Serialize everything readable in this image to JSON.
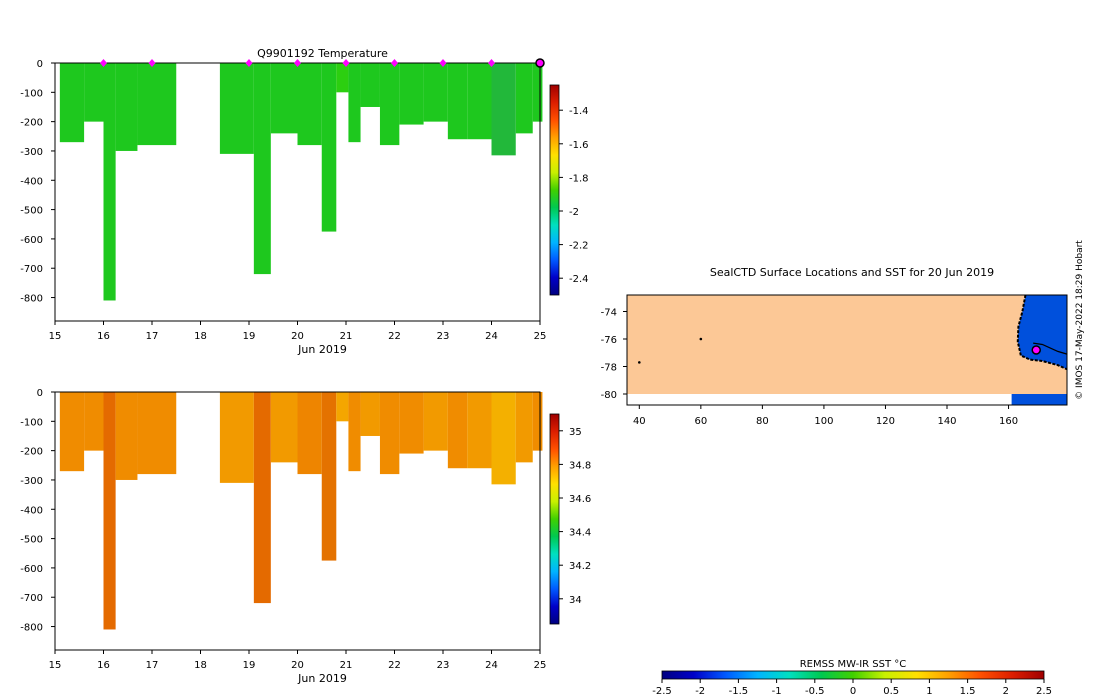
{
  "chart_data": [
    {
      "type": "heatmap",
      "title": "Q9901192  Temperature",
      "xlabel": "Jun 2019",
      "ylabel": "",
      "xlim": [
        15,
        25
      ],
      "ylim": [
        -880,
        0
      ],
      "xticks": [
        "15",
        "16",
        "17",
        "18",
        "19",
        "20",
        "21",
        "22",
        "23",
        "24",
        "25"
      ],
      "yticks": [
        "0",
        "-100",
        "-200",
        "-300",
        "-400",
        "-500",
        "-600",
        "-700",
        "-800"
      ],
      "colorbar": {
        "range": [
          -2.5,
          -1.25
        ],
        "ticks": [
          "-1.4",
          "-1.6",
          "-1.8",
          "-2",
          "-2.2",
          "-2.4"
        ],
        "ramp": [
          "#000080",
          "#0000c8",
          "#005aff",
          "#00b4ff",
          "#00e0c0",
          "#00c850",
          "#40d000",
          "#c8f000",
          "#ffe000",
          "#ffa000",
          "#ff5000",
          "#dc1e00",
          "#a00000"
        ]
      },
      "markers": [
        {
          "day": 16,
          "color": "#ff00ff"
        },
        {
          "day": 17,
          "color": "#ff00ff"
        },
        {
          "day": 19,
          "color": "#ff00ff"
        },
        {
          "day": 20,
          "color": "#ff00ff"
        },
        {
          "day": 21,
          "color": "#ff00ff"
        },
        {
          "day": 22,
          "color": "#ff00ff"
        },
        {
          "day": 23,
          "color": "#ff00ff"
        },
        {
          "day": 24,
          "color": "#ff00ff"
        },
        {
          "day": 25,
          "color": "#ff00ff",
          "current": true
        }
      ],
      "profiles": [
        {
          "x0": 15.1,
          "x1": 15.6,
          "depth": 270,
          "color": "#1ec81e"
        },
        {
          "x0": 15.6,
          "x1": 16.0,
          "depth": 200,
          "color": "#1ec81e"
        },
        {
          "x0": 16.0,
          "x1": 16.25,
          "depth": 810,
          "color": "#1ec81e"
        },
        {
          "x0": 16.25,
          "x1": 16.7,
          "depth": 300,
          "color": "#1ec81e"
        },
        {
          "x0": 16.7,
          "x1": 17.5,
          "depth": 280,
          "color": "#1ec81e"
        },
        {
          "x0": 18.4,
          "x1": 19.1,
          "depth": 310,
          "color": "#1ec81e"
        },
        {
          "x0": 19.1,
          "x1": 19.45,
          "depth": 720,
          "color": "#1ec81e"
        },
        {
          "x0": 19.45,
          "x1": 20.0,
          "depth": 240,
          "color": "#1ec81e"
        },
        {
          "x0": 20.0,
          "x1": 20.5,
          "depth": 280,
          "color": "#1ec81e"
        },
        {
          "x0": 20.5,
          "x1": 20.8,
          "depth": 575,
          "color": "#1ec81e"
        },
        {
          "x0": 20.8,
          "x1": 21.05,
          "depth": 100,
          "color": "#2ccf10"
        },
        {
          "x0": 21.05,
          "x1": 21.3,
          "depth": 270,
          "color": "#1ec81e"
        },
        {
          "x0": 21.3,
          "x1": 21.7,
          "depth": 150,
          "color": "#1ec81e"
        },
        {
          "x0": 21.7,
          "x1": 22.1,
          "depth": 280,
          "color": "#1ec81e"
        },
        {
          "x0": 22.1,
          "x1": 22.6,
          "depth": 210,
          "color": "#1ec81e"
        },
        {
          "x0": 22.6,
          "x1": 23.1,
          "depth": 200,
          "color": "#1ec81e"
        },
        {
          "x0": 23.1,
          "x1": 23.5,
          "depth": 260,
          "color": "#1ec81e"
        },
        {
          "x0": 23.5,
          "x1": 24.0,
          "depth": 260,
          "color": "#1ec81e"
        },
        {
          "x0": 24.0,
          "x1": 24.5,
          "depth": 315,
          "color": "#22b83a"
        },
        {
          "x0": 24.5,
          "x1": 24.85,
          "depth": 240,
          "color": "#1ec81e"
        },
        {
          "x0": 24.85,
          "x1": 25.05,
          "depth": 200,
          "color": "#1ec81e"
        }
      ]
    },
    {
      "type": "heatmap",
      "title": "",
      "xlabel": "Jun 2019",
      "ylabel": "",
      "xlim": [
        15,
        25
      ],
      "ylim": [
        -880,
        0
      ],
      "xticks": [
        "15",
        "16",
        "17",
        "18",
        "19",
        "20",
        "21",
        "22",
        "23",
        "24",
        "25"
      ],
      "yticks": [
        "0",
        "-100",
        "-200",
        "-300",
        "-400",
        "-500",
        "-600",
        "-700",
        "-800"
      ],
      "colorbar": {
        "range": [
          33.85,
          35.1
        ],
        "ticks": [
          "35",
          "34.8",
          "34.6",
          "34.4",
          "34.2",
          "34"
        ],
        "ramp": [
          "#000080",
          "#0000c8",
          "#005aff",
          "#00b4ff",
          "#00e0c0",
          "#00c850",
          "#40d000",
          "#c8f000",
          "#ffe000",
          "#ffa000",
          "#ff5000",
          "#dc1e00",
          "#a00000"
        ]
      },
      "profiles": [
        {
          "x0": 15.1,
          "x1": 15.6,
          "depth": 270,
          "color": "#f08c00"
        },
        {
          "x0": 15.6,
          "x1": 16.0,
          "depth": 200,
          "color": "#f08c00"
        },
        {
          "x0": 16.0,
          "x1": 16.25,
          "depth": 810,
          "color": "#e46a00"
        },
        {
          "x0": 16.25,
          "x1": 16.7,
          "depth": 300,
          "color": "#f08c00"
        },
        {
          "x0": 16.7,
          "x1": 17.5,
          "depth": 280,
          "color": "#f08c00"
        },
        {
          "x0": 18.4,
          "x1": 19.1,
          "depth": 310,
          "color": "#f29a00"
        },
        {
          "x0": 19.1,
          "x1": 19.45,
          "depth": 720,
          "color": "#e46a00"
        },
        {
          "x0": 19.45,
          "x1": 20.0,
          "depth": 240,
          "color": "#f29a00"
        },
        {
          "x0": 20.0,
          "x1": 20.5,
          "depth": 280,
          "color": "#ee8500"
        },
        {
          "x0": 20.5,
          "x1": 20.8,
          "depth": 575,
          "color": "#e47200"
        },
        {
          "x0": 20.8,
          "x1": 21.05,
          "depth": 100,
          "color": "#f4a600"
        },
        {
          "x0": 21.05,
          "x1": 21.3,
          "depth": 270,
          "color": "#f08c00"
        },
        {
          "x0": 21.3,
          "x1": 21.7,
          "depth": 150,
          "color": "#f29a00"
        },
        {
          "x0": 21.7,
          "x1": 22.1,
          "depth": 280,
          "color": "#f08c00"
        },
        {
          "x0": 22.1,
          "x1": 22.6,
          "depth": 210,
          "color": "#f08c00"
        },
        {
          "x0": 22.6,
          "x1": 23.1,
          "depth": 200,
          "color": "#f29a00"
        },
        {
          "x0": 23.1,
          "x1": 23.5,
          "depth": 260,
          "color": "#f08c00"
        },
        {
          "x0": 23.5,
          "x1": 24.0,
          "depth": 260,
          "color": "#f29a00"
        },
        {
          "x0": 24.0,
          "x1": 24.5,
          "depth": 315,
          "color": "#f4b000"
        },
        {
          "x0": 24.5,
          "x1": 24.85,
          "depth": 240,
          "color": "#f29a00"
        },
        {
          "x0": 24.85,
          "x1": 25.05,
          "depth": 200,
          "color": "#f08c00"
        }
      ]
    },
    {
      "type": "map",
      "title": "SealCTD Surface Locations and SST for 20 Jun 2019",
      "xlim": [
        36,
        179
      ],
      "ylim": [
        -80.8,
        -72.8
      ],
      "xticks": [
        "40",
        "60",
        "80",
        "100",
        "120",
        "140",
        "160"
      ],
      "yticks": [
        "-74",
        "-76",
        "-78",
        "-80"
      ],
      "land_color": "#fcc896",
      "ocean_color": "#0050dc",
      "points": [
        {
          "lon": 60,
          "lat": -76.0,
          "kind": "surface"
        },
        {
          "lon": 40,
          "lat": -77.7,
          "kind": "surface"
        },
        {
          "lon": 169,
          "lat": -76.8,
          "kind": "current"
        }
      ]
    }
  ],
  "sst_colorbar": {
    "label": "REMSS MW-IR SST °C",
    "ticks": [
      "-2.5",
      "-2",
      "-1.5",
      "-1",
      "-0.5",
      "0",
      "0.5",
      "1",
      "1.5",
      "2",
      "2.5"
    ],
    "ramp": [
      "#000080",
      "#0000c8",
      "#005aff",
      "#00b4ff",
      "#00e0c0",
      "#00c850",
      "#40d000",
      "#c8f000",
      "#ffe000",
      "#ffa000",
      "#ff5000",
      "#dc1e00",
      "#a00000"
    ]
  },
  "credit": "© IMOS 17-May-2022 18:29 Hobart"
}
